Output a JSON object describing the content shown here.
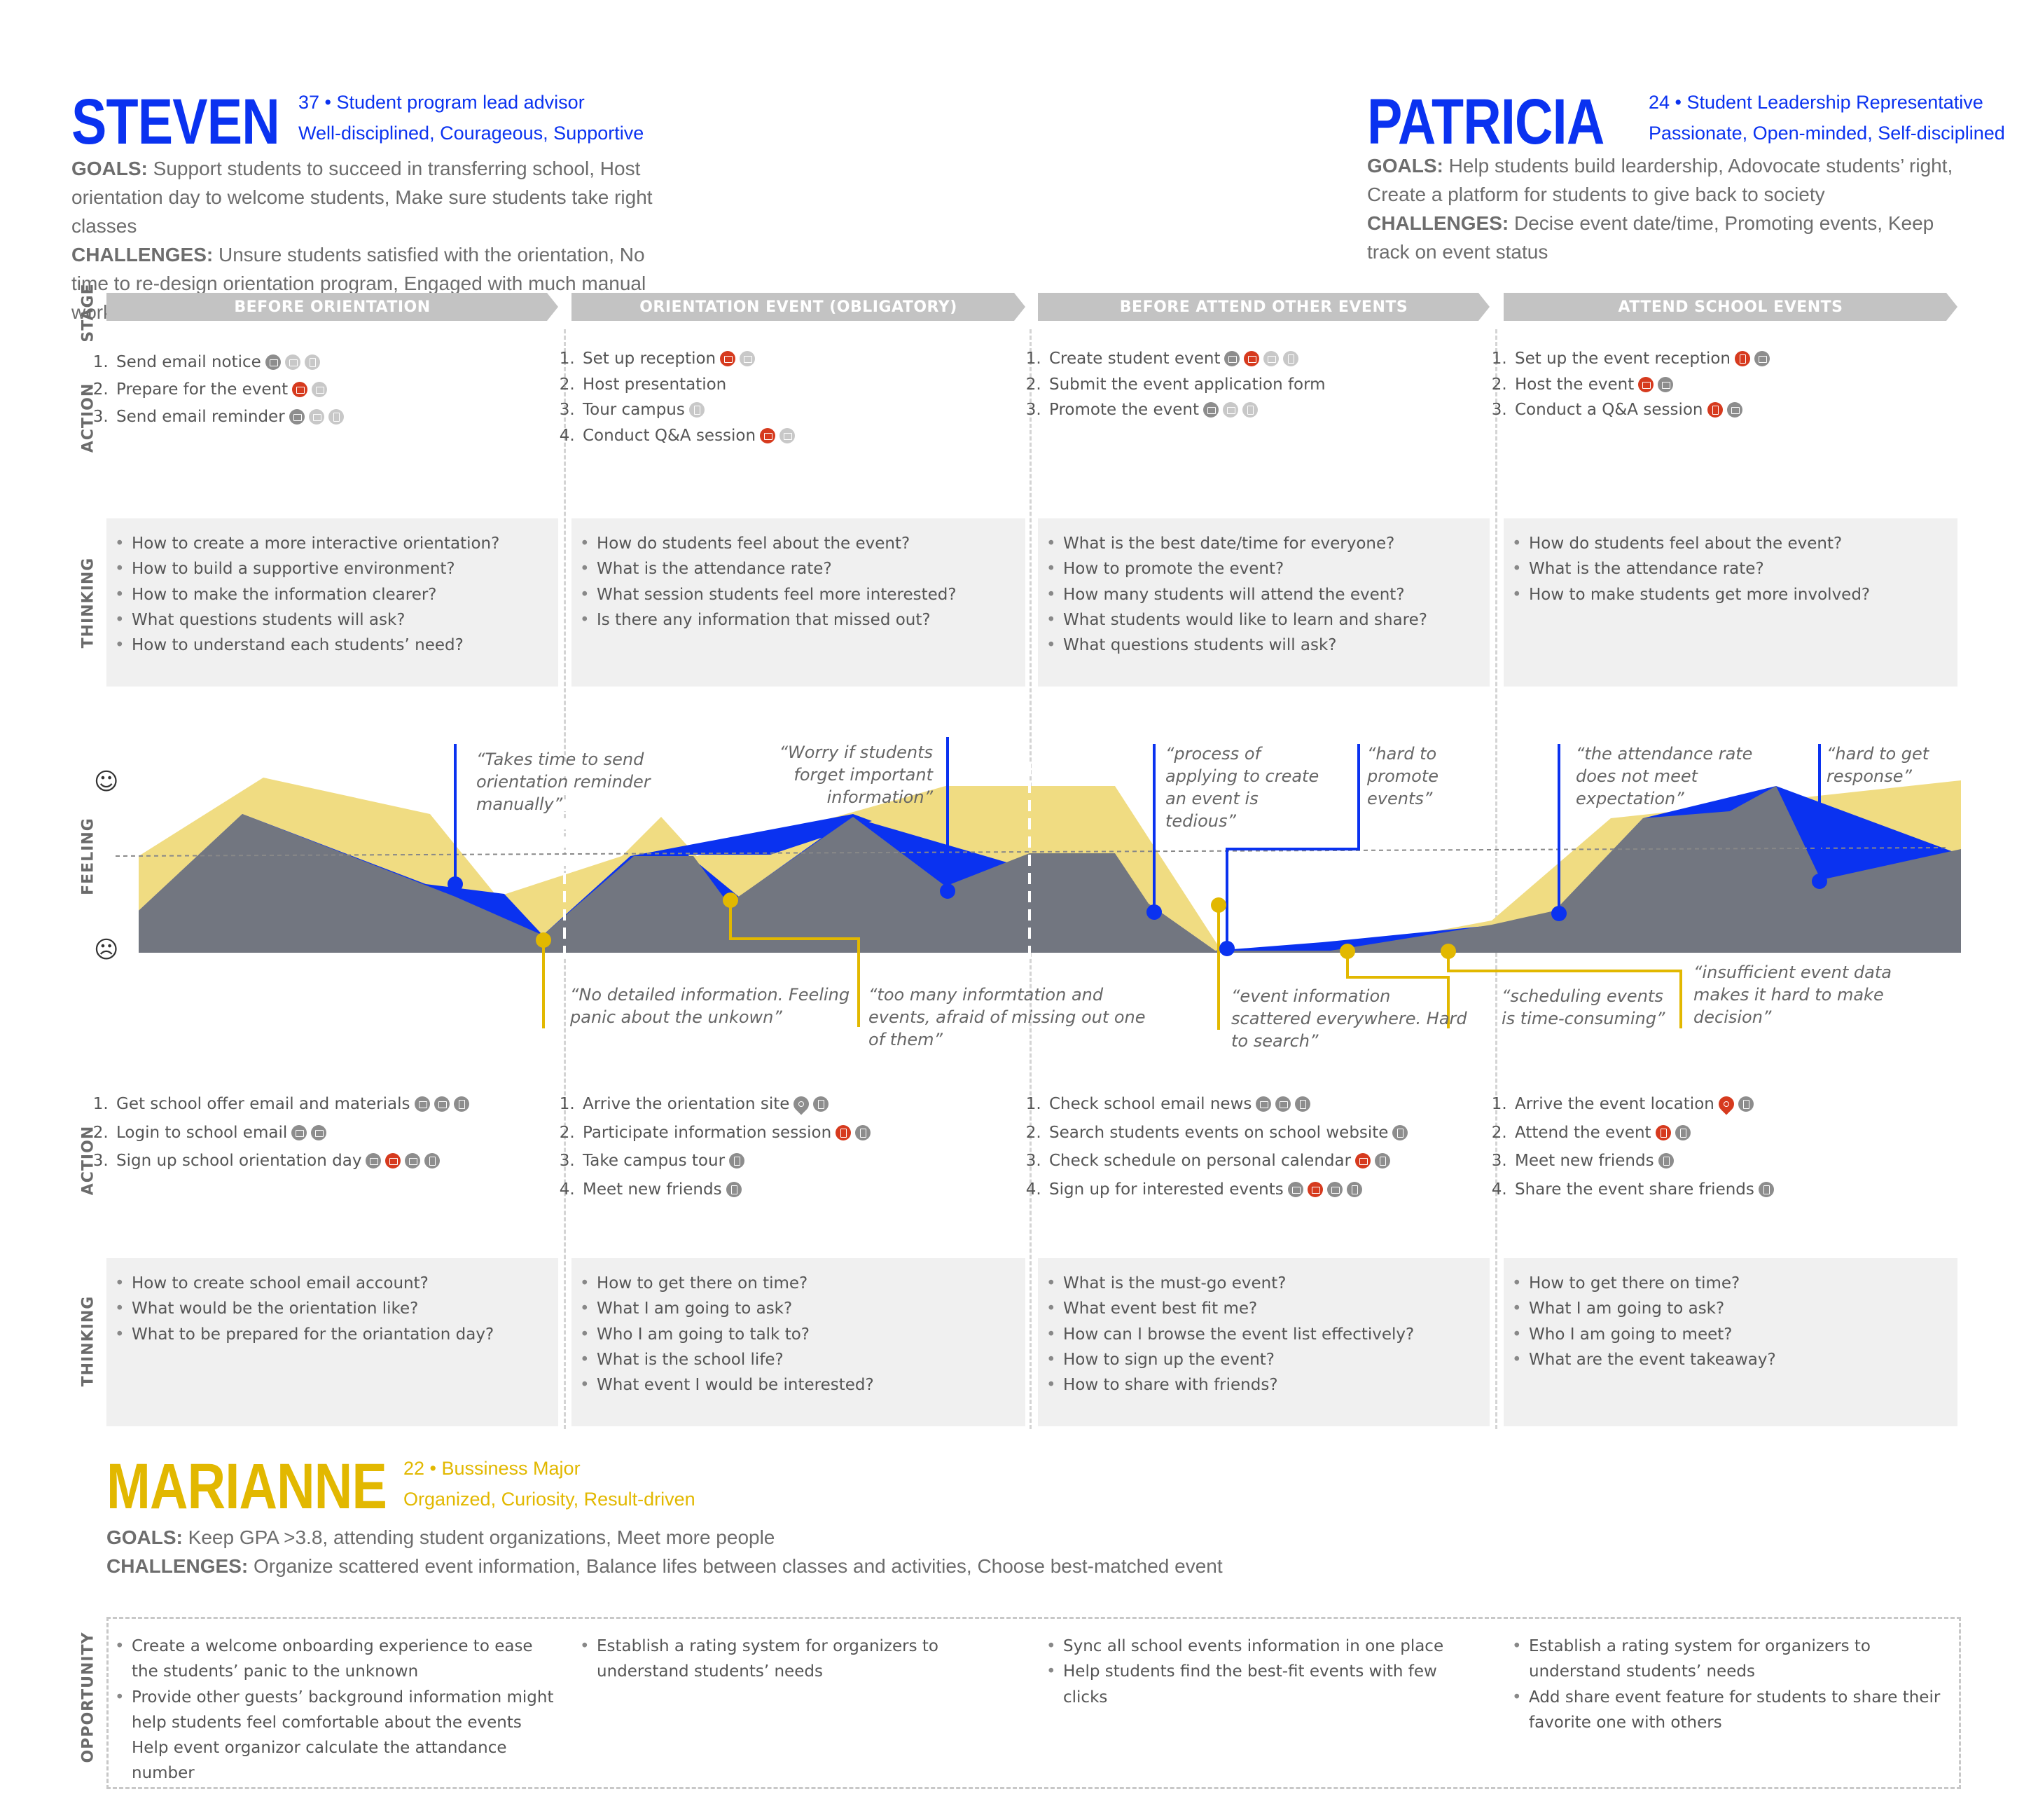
{
  "personas": {
    "steven": {
      "name": "STEVEN",
      "meta1": "37 • Student program lead advisor",
      "meta2": "Well-disciplined, Courageous, Supportive",
      "goals_label": "GOALS:",
      "goals": "Support students to succeed in transferring school, Host orientation day to welcome students, Make sure students take right classes",
      "challenges_label": "CHALLENGES:",
      "challenges": "Unsure students satisfied with the orientation, No time to re-design orientation program, Engaged with much manual work"
    },
    "patricia": {
      "name": "PATRICIA",
      "meta1": "24 • Student Leadership Representative",
      "meta2": "Passionate, Open-minded, Self-disciplined",
      "goals_label": "GOALS:",
      "goals": "Help students build leardership, Adovocate students’ right, Create a platform for students to give back to society",
      "challenges_label": "CHALLENGES:",
      "challenges": "Decise event date/time, Promoting events, Keep track on event status"
    },
    "marianne": {
      "name": "MARIANNE",
      "meta1": "22 • Bussiness Major",
      "meta2": "Organized, Curiosity, Result-driven",
      "goals_label": "GOALS:",
      "goals": "Keep GPA >3.8, attending student organizations, Meet more people",
      "challenges_label": "CHALLENGES:",
      "challenges": "Organize scattered event information, Balance lifes between classes and activities, Choose best-matched event"
    }
  },
  "row_labels": {
    "stage": "STAGE",
    "action": "ACTION",
    "thinking": "THINKING",
    "feeling": "FEELING",
    "opportunity": "OPPORTUNITY"
  },
  "stages": [
    "BEFORE ORIENTATION",
    "ORIENTATION EVENT (OBLIGATORY)",
    "BEFORE ATTEND OTHER EVENTS",
    "ATTEND SCHOOL EVENTS"
  ],
  "organizer_actions": [
    [
      {
        "text": "Send email notice",
        "icons": [
          "email-icon",
          "chat-icon",
          "phone-icon"
        ]
      },
      {
        "text": "Prepare for the event",
        "icons": [
          "document-icon",
          "chat-icon"
        ]
      },
      {
        "text": "Send email reminder",
        "icons": [
          "email-icon",
          "chat-icon",
          "phone-icon"
        ]
      }
    ],
    [
      {
        "text": "Set up reception",
        "icons": [
          "document-icon",
          "chat-icon"
        ]
      },
      {
        "text": "Host presentation",
        "icons": []
      },
      {
        "text": "Tour campus",
        "icons": [
          "phone-icon"
        ]
      },
      {
        "text": "Conduct Q&A session",
        "icons": [
          "document-icon",
          "chat-icon"
        ]
      }
    ],
    [
      {
        "text": "Create student event",
        "icons": [
          "email-icon",
          "calendar-icon",
          "chat-icon",
          "phone-icon"
        ]
      },
      {
        "text": "Submit the event application form",
        "icons": []
      },
      {
        "text": "Promote the event",
        "icons": [
          "email-icon",
          "chat-icon",
          "phone-icon"
        ]
      }
    ],
    [
      {
        "text": "Set up the event reception",
        "icons": [
          "clipboard-icon",
          "chat-icon"
        ]
      },
      {
        "text": "Host the event",
        "icons": [
          "document-icon",
          "chat-icon"
        ]
      },
      {
        "text": "Conduct a Q&A session",
        "icons": [
          "clipboard-icon",
          "chat-icon"
        ]
      }
    ]
  ],
  "organizer_thinking": [
    [
      "How to create a more interactive orientation?",
      "How to build a supportive environment?",
      "How to make the information clearer?",
      "What questions students will ask?",
      "How to understand each students’ need?"
    ],
    [
      "How do students feel about the event?",
      "What is the attendance rate?",
      "What session students feel more interested?",
      "Is there any information that missed out?"
    ],
    [
      "What is the best date/time for everyone?",
      "How to promote the event?",
      "How many students will attend the event?",
      "What students would like to learn and share?",
      "What questions students will ask?"
    ],
    [
      "How do students feel about the event?",
      "What is the attendance rate?",
      "How to make students get more involved?"
    ]
  ],
  "feeling": {
    "quotes_top": [
      "“Takes time to send orientation reminder manually”",
      "“Worry if students forget important information”",
      "“process of applying to create an event is tedious”",
      "“hard to promote events”",
      "“the attendance rate does not meet expectation”",
      "“hard to get response”"
    ],
    "quotes_bottom": [
      "“No detailed information. Feeling panic about the unkown”",
      "“too many informtation and events, afraid of missing out one of them”",
      "“event information scattered everywhere. Hard to search”",
      "“scheduling events is time-consuming”",
      "“insufficient event data makes it hard to make decision”"
    ],
    "colors": {
      "steven": "#0a32f0",
      "patricia": "#f0dc82",
      "marianne": "#e2b800",
      "gray": "#727680"
    }
  },
  "student_actions": [
    [
      {
        "text": "Get school offer email and materials",
        "icons": [
          "email-icon",
          "chat-icon",
          "phone-icon"
        ]
      },
      {
        "text": "Login to school email",
        "icons": [
          "email-icon",
          "chat-icon"
        ]
      },
      {
        "text": "Sign up school orientation day",
        "icons": [
          "email-icon",
          "calendar-icon",
          "chat-icon",
          "phone-icon"
        ]
      }
    ],
    [
      {
        "text": "Arrive the orientation site",
        "icons": [
          "pin-icon",
          "phone-icon"
        ]
      },
      {
        "text": "Participate information session",
        "icons": [
          "clipboard-icon",
          "phone-icon"
        ]
      },
      {
        "text": "Take campus tour",
        "icons": [
          "phone-icon"
        ]
      },
      {
        "text": "Meet new friends",
        "icons": [
          "phone-icon"
        ]
      }
    ],
    [
      {
        "text": "Check school email news",
        "icons": [
          "email-icon",
          "chat-icon",
          "phone-icon"
        ]
      },
      {
        "text": "Search students events on school website",
        "icons": [
          "phone-icon"
        ]
      },
      {
        "text": "Check schedule on personal calendar",
        "icons": [
          "calendar-icon",
          "phone-icon"
        ]
      },
      {
        "text": "Sign up for interested events",
        "icons": [
          "email-icon",
          "document-icon",
          "chat-icon",
          "phone-icon"
        ]
      }
    ],
    [
      {
        "text": "Arrive the event location",
        "icons": [
          "pin-icon",
          "phone-icon"
        ]
      },
      {
        "text": "Attend the event",
        "icons": [
          "clipboard-icon",
          "phone-icon"
        ]
      },
      {
        "text": "Meet new friends",
        "icons": [
          "phone-icon"
        ]
      },
      {
        "text": "Share the event share friends",
        "icons": [
          "phone-icon"
        ]
      }
    ]
  ],
  "student_thinking": [
    [
      "How to create school email account?",
      "What would be the orientation like?",
      "What to be prepared for the oriantation day?"
    ],
    [
      "How to get there on time?",
      "What I am going to ask?",
      "Who I am going to talk to?",
      "What is the school life?",
      "What event I would be interested?"
    ],
    [
      "What is the must-go event?",
      "What event best fit me?",
      "How can I browse the event list effectively?",
      "How to sign up the event?",
      "How to share with friends?"
    ],
    [
      "How to get there on time?",
      "What I am going to ask?",
      "Who I am going to meet?",
      "What are the event takeaway?"
    ]
  ],
  "opportunity": [
    [
      "Create a welcome onboarding experience to ease the students’ panic to the unknown",
      "Provide other guests’ background information might help students feel comfortable about the events",
      "Help event organizor calculate the attandance number"
    ],
    [
      "Establish a rating system for organizers to understand students’ needs"
    ],
    [
      "Sync all school events information in one place",
      "Help students find the best-fit events with few clicks"
    ],
    [
      "Establish a rating system for organizers to understand students’ needs",
      "Add share event feature for students to share their favorite one with others"
    ]
  ]
}
